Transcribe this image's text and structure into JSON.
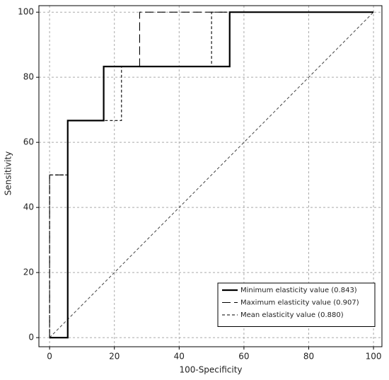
{
  "chart_data": {
    "type": "line",
    "x_label": "100-Specificity",
    "y_label": "Sensitivity",
    "xlim": [
      -3.3,
      102.6
    ],
    "ylim": [
      -2.8,
      102
    ],
    "xticks": [
      0,
      20,
      40,
      60,
      80,
      100
    ],
    "yticks": [
      0,
      20,
      40,
      60,
      80,
      100
    ],
    "grid": true,
    "legend": "lower right",
    "series": [
      {
        "name": "Minimum elasticity value (0.843)",
        "color": "#000000",
        "line_style": "solid",
        "x": [
          0,
          5.6,
          5.6,
          16.7,
          16.7,
          55.6,
          55.6,
          100
        ],
        "values": [
          0,
          0,
          66.7,
          66.7,
          83.3,
          83.3,
          100,
          100
        ]
      },
      {
        "name": "Maximum elasticity value (0.907)",
        "color": "#000000",
        "line_style": "long-dash",
        "x": [
          0,
          0,
          5.6,
          5.6,
          16.7,
          16.7,
          27.8,
          27.8,
          100
        ],
        "values": [
          0,
          50,
          50,
          66.7,
          66.7,
          83.3,
          83.3,
          100,
          100
        ]
      },
      {
        "name": "Mean elasticity value (0.880)",
        "color": "#000000",
        "line_style": "short-dash",
        "x": [
          0,
          0,
          5.6,
          5.6,
          22.2,
          22.2,
          50,
          50,
          100
        ],
        "values": [
          0,
          50,
          50,
          66.7,
          66.7,
          83.3,
          83.3,
          100,
          100
        ]
      }
    ]
  }
}
